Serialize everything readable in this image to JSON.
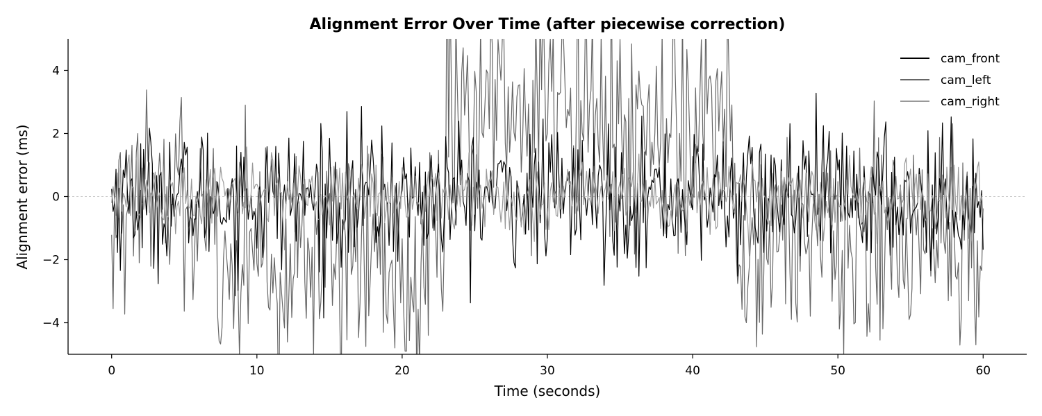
{
  "chart_data": {
    "type": "line",
    "title": "Alignment Error Over Time (after piecewise correction)",
    "xlabel": "Time (seconds)",
    "ylabel": "Alignment error (ms)",
    "xlim": [
      -3,
      63
    ],
    "ylim": [
      -5,
      5
    ],
    "x_ticks": [
      0,
      10,
      20,
      30,
      40,
      50,
      60
    ],
    "y_ticks": [
      -4,
      -2,
      0,
      2,
      4
    ],
    "x_tick_labels": [
      "0",
      "10",
      "20",
      "30",
      "40",
      "50",
      "60"
    ],
    "y_tick_labels": [
      "−4",
      "−2",
      "0",
      "2",
      "4"
    ],
    "zero_line": {
      "y": 0,
      "style": "dashed",
      "color": "#c8c8c8"
    },
    "grid": false,
    "legend": {
      "position": "top-right"
    },
    "sample_interval_s": 0.1,
    "series": [
      {
        "name": "cam_front",
        "color": "#000000",
        "segments": [
          {
            "t_start": 0,
            "t_end": 60,
            "mean": 0.0,
            "std": 1.1
          }
        ]
      },
      {
        "name": "cam_left",
        "color": "#666666",
        "segments": [
          {
            "t_start": 0,
            "t_end": 7,
            "mean": 0.0,
            "std": 1.6
          },
          {
            "t_start": 7,
            "t_end": 23,
            "mean": -2.0,
            "std": 1.8
          },
          {
            "t_start": 23,
            "t_end": 43,
            "mean": 2.5,
            "std": 2.0
          },
          {
            "t_start": 43,
            "t_end": 60,
            "mean": -1.5,
            "std": 1.8
          }
        ]
      },
      {
        "name": "cam_right",
        "color": "#999999",
        "segments": [
          {
            "t_start": 0,
            "t_end": 60,
            "mean": 0.0,
            "std": 0.6
          }
        ]
      }
    ]
  }
}
